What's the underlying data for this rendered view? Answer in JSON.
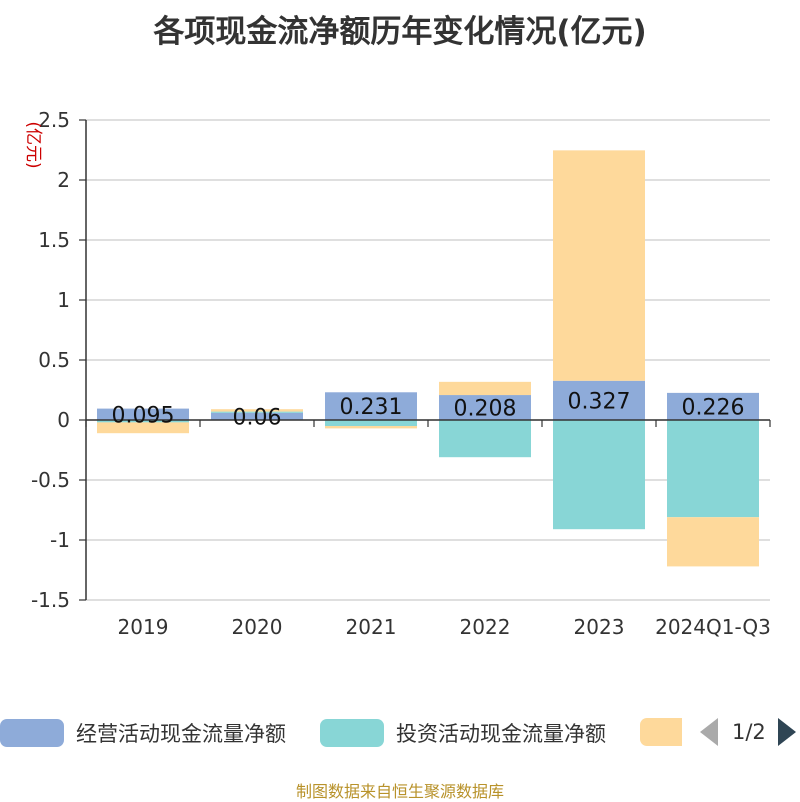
{
  "chart_data": {
    "type": "bar",
    "stacked": true,
    "title": "各项现金流净额历年变化情况(亿元)",
    "ylabel": "(亿元)",
    "ylim": [
      -1.5,
      2.5
    ],
    "yticks": [
      2.5,
      2,
      1.5,
      1,
      0.5,
      0,
      -0.5,
      -1,
      -1.5
    ],
    "ytick_labels": [
      "2.5",
      "2",
      "1.5",
      "1",
      "0.5",
      "0",
      "-0.5",
      "-1",
      "-1.5"
    ],
    "grid": true,
    "legend_position": "bottom",
    "categories": [
      "2019",
      "2020",
      "2021",
      "2022",
      "2023",
      "2024Q1-Q3"
    ],
    "series": [
      {
        "name": "经营活动现金流量净额",
        "color": "#8eabd9",
        "values": [
          0.095,
          0.06,
          0.231,
          0.208,
          0.327,
          0.226
        ],
        "show_labels": true
      },
      {
        "name": "投资活动现金流量净额",
        "color": "#88d6d6",
        "values": [
          -0.02,
          0.01,
          -0.05,
          -0.31,
          -0.91,
          -0.81
        ],
        "show_labels": false
      },
      {
        "name": "",
        "color": "#fed99b",
        "values": [
          -0.09,
          0.02,
          -0.02,
          0.11,
          1.92,
          -0.41
        ],
        "show_labels": false
      }
    ]
  },
  "legend": {
    "page_text": "1/2"
  },
  "source_text": "制图数据来自恒生聚源数据库"
}
